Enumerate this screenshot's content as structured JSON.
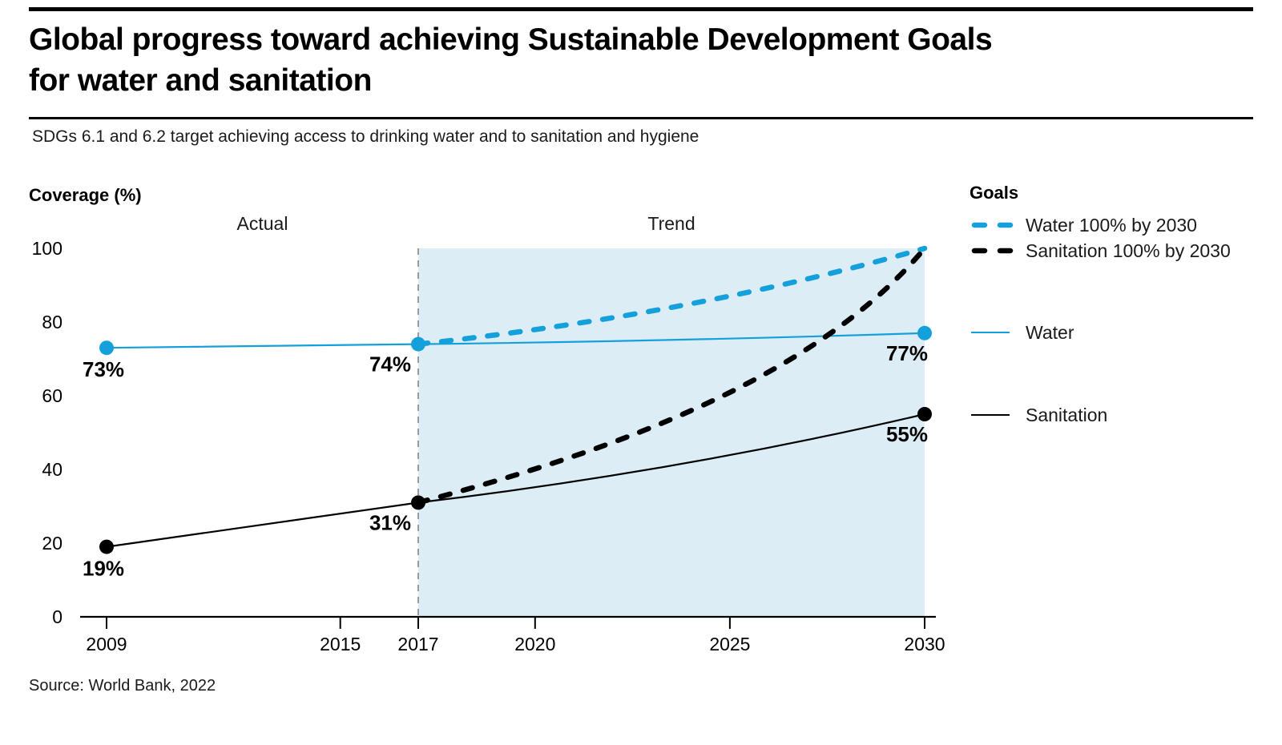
{
  "title_line1": "Global progress toward achieving Sustainable Development Goals",
  "title_line2": "for water and sanitation",
  "subtitle": "SDGs 6.1 and 6.2 target achieving access to drinking water and to sanitation and hygiene",
  "source": "Source: World Bank, 2022",
  "colors": {
    "accent_blue": "#14A0DA",
    "black": "#000000",
    "trend_fill": "#DDEDF6",
    "divider_gray": "#9B9B9B",
    "text_dark": "#1a1a1a"
  },
  "legend": {
    "header": "Goals",
    "items": [
      {
        "label": "Water 100% by 2030",
        "style": "dashed",
        "color_key": "accent_blue"
      },
      {
        "label": "Sanitation 100% by 2030",
        "style": "dashed",
        "color_key": "black"
      },
      {
        "label": "Water",
        "style": "solid",
        "color_key": "accent_blue"
      },
      {
        "label": "Sanitation",
        "style": "solid",
        "color_key": "black"
      }
    ]
  },
  "chart_data": {
    "type": "line",
    "x_axis": {
      "ticks": [
        2009,
        2015,
        2017,
        2020,
        2025,
        2030
      ],
      "range": [
        2009,
        2030
      ]
    },
    "y_axis": {
      "label": "Coverage (%)",
      "ticks": [
        0,
        20,
        40,
        60,
        80,
        100
      ],
      "range": [
        0,
        100
      ]
    },
    "regions": [
      {
        "label": "Actual",
        "from": 2009,
        "to": 2017,
        "shaded": false
      },
      {
        "label": "Trend",
        "from": 2017,
        "to": 2030,
        "shaded": true
      }
    ],
    "divider_year": 2017,
    "series": [
      {
        "name": "Water",
        "style": "solid",
        "curve": "gentle",
        "color_key": "accent_blue",
        "points": [
          {
            "year": 2009,
            "value": 73,
            "label": "73%"
          },
          {
            "year": 2017,
            "value": 74,
            "label": "74%"
          },
          {
            "year": 2030,
            "value": 77,
            "label": "77%"
          }
        ]
      },
      {
        "name": "Sanitation",
        "style": "solid",
        "curve": "gentle",
        "color_key": "black",
        "points": [
          {
            "year": 2009,
            "value": 19,
            "label": "19%"
          },
          {
            "year": 2017,
            "value": 31,
            "label": "31%"
          },
          {
            "year": 2030,
            "value": 55,
            "label": "55%"
          }
        ]
      },
      {
        "name": "Water 100% by 2030",
        "style": "dashed",
        "curve": "gentle",
        "color_key": "accent_blue",
        "points": [
          {
            "year": 2017,
            "value": 74
          },
          {
            "year": 2030,
            "value": 100
          }
        ]
      },
      {
        "name": "Sanitation 100% by 2030",
        "style": "dashed",
        "curve": "exponential",
        "color_key": "black",
        "points": [
          {
            "year": 2017,
            "value": 31
          },
          {
            "year": 2030,
            "value": 100
          }
        ]
      }
    ]
  }
}
